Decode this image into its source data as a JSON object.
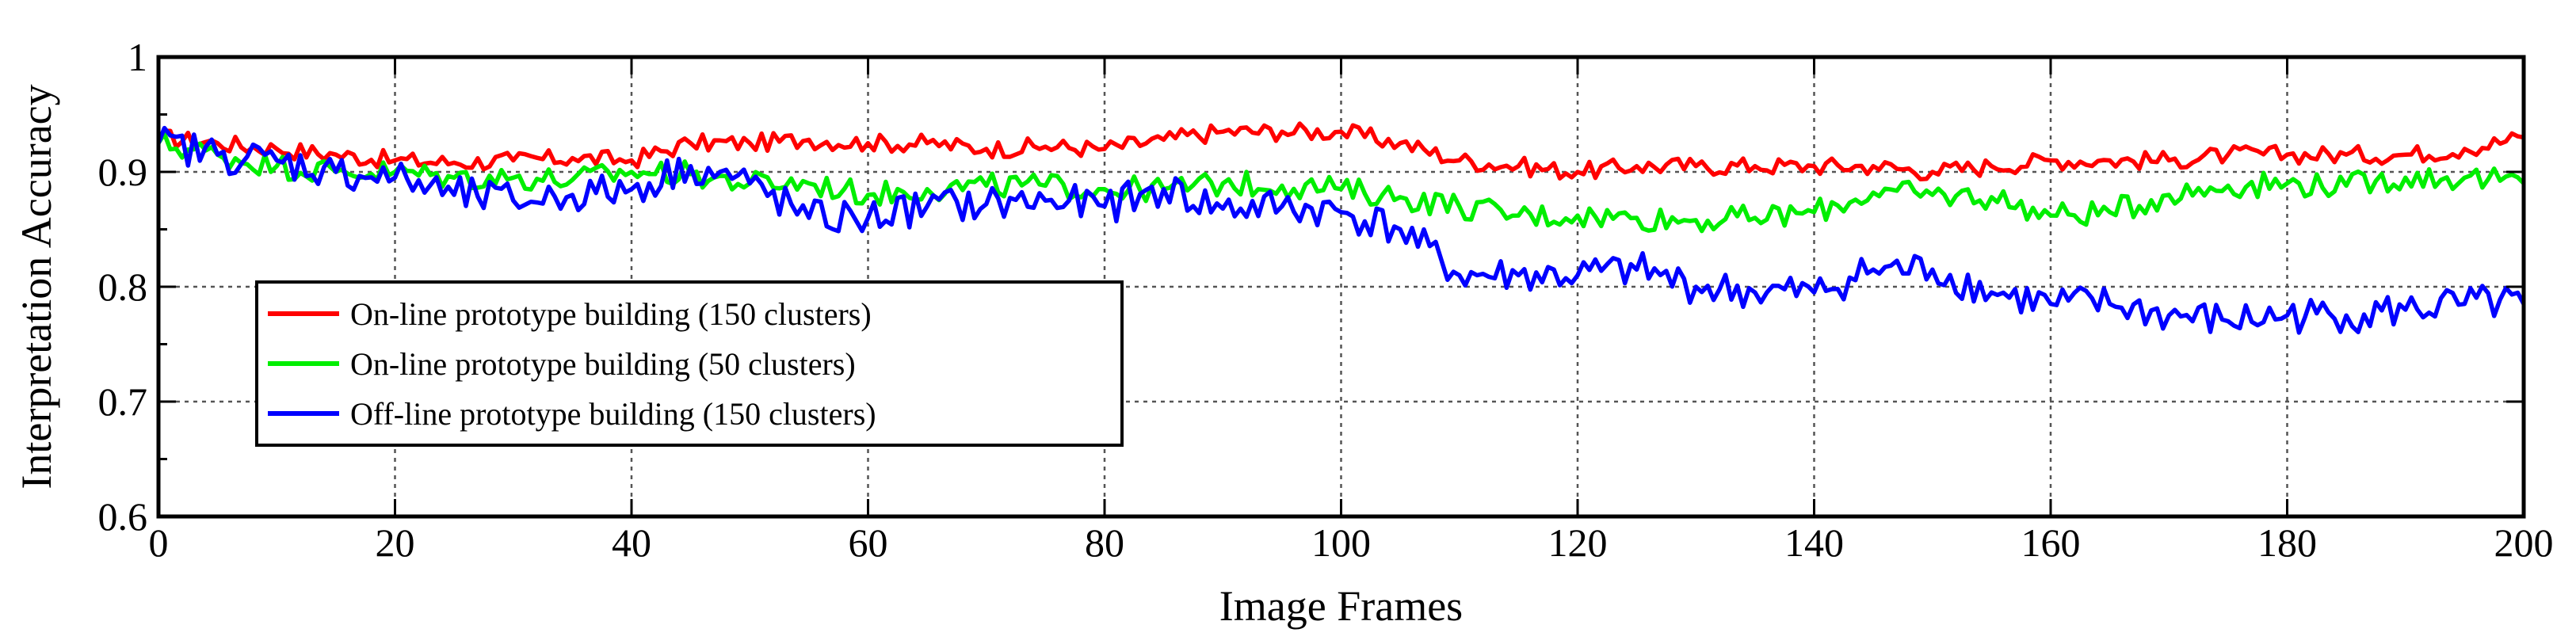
{
  "chart_data": {
    "type": "line",
    "xlabel": "Image Frames",
    "ylabel": "Interpretation Accuracy",
    "xlim": [
      0,
      200
    ],
    "ylim": [
      0.6,
      1.0
    ],
    "xticks": [
      0,
      20,
      40,
      60,
      80,
      100,
      120,
      140,
      160,
      180,
      200
    ],
    "yticks": [
      0.6,
      0.7,
      0.8,
      0.9,
      1.0
    ],
    "xtick_labels": [
      "0",
      "20",
      "40",
      "60",
      "80",
      "100",
      "120",
      "140",
      "160",
      "180",
      "200"
    ],
    "ytick_labels": [
      "0.6",
      "0.7",
      "0.8",
      "0.9",
      "1"
    ],
    "grid": true,
    "legend_position": "lower-left",
    "x": [
      0,
      5,
      10,
      15,
      20,
      25,
      30,
      35,
      40,
      45,
      50,
      55,
      60,
      65,
      70,
      75,
      80,
      85,
      90,
      95,
      100,
      105,
      110,
      115,
      120,
      125,
      130,
      135,
      140,
      145,
      150,
      155,
      160,
      165,
      170,
      175,
      180,
      185,
      190,
      195,
      200
    ],
    "series": [
      {
        "name": "On-line prototype building (150 clusters)",
        "color": "#ff0000",
        "values": [
          0.93,
          0.925,
          0.92,
          0.915,
          0.91,
          0.908,
          0.91,
          0.912,
          0.91,
          0.925,
          0.925,
          0.928,
          0.925,
          0.925,
          0.92,
          0.922,
          0.92,
          0.928,
          0.935,
          0.935,
          0.935,
          0.925,
          0.91,
          0.905,
          0.9,
          0.905,
          0.905,
          0.905,
          0.905,
          0.905,
          0.9,
          0.905,
          0.91,
          0.91,
          0.91,
          0.915,
          0.915,
          0.915,
          0.915,
          0.92,
          0.93
        ]
      },
      {
        "name": "On-line prototype building (50 clusters)",
        "color": "#00ee00",
        "values": [
          0.925,
          0.915,
          0.905,
          0.9,
          0.9,
          0.895,
          0.895,
          0.893,
          0.9,
          0.898,
          0.89,
          0.89,
          0.88,
          0.885,
          0.888,
          0.888,
          0.885,
          0.885,
          0.89,
          0.888,
          0.885,
          0.878,
          0.87,
          0.862,
          0.862,
          0.86,
          0.858,
          0.86,
          0.865,
          0.882,
          0.88,
          0.878,
          0.862,
          0.865,
          0.88,
          0.888,
          0.89,
          0.888,
          0.895,
          0.895,
          0.89
        ]
      },
      {
        "name": "Off-line prototype building (150 clusters)",
        "color": "#0000ff",
        "values": [
          0.925,
          0.915,
          0.91,
          0.9,
          0.895,
          0.88,
          0.875,
          0.88,
          0.885,
          0.905,
          0.89,
          0.86,
          0.86,
          0.87,
          0.872,
          0.875,
          0.87,
          0.885,
          0.868,
          0.87,
          0.865,
          0.85,
          0.81,
          0.81,
          0.81,
          0.815,
          0.8,
          0.795,
          0.795,
          0.815,
          0.815,
          0.795,
          0.785,
          0.785,
          0.775,
          0.77,
          0.775,
          0.775,
          0.78,
          0.785,
          0.785
        ]
      }
    ]
  }
}
